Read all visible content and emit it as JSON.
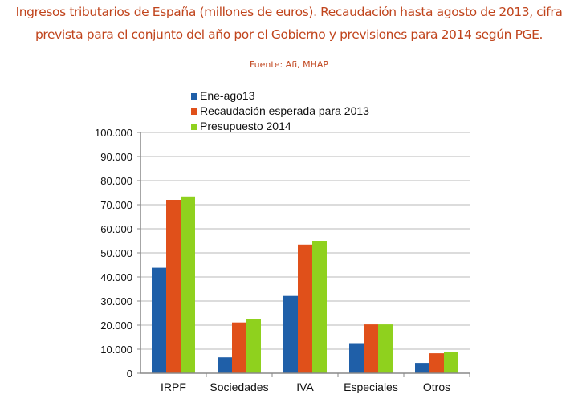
{
  "title_line1": "Ingresos tributarios de España (millones de euros). Recaudación hasta agosto de 2013, cifra",
  "title_line2": "prevista para el conjunto del año por el Gobierno y previsiones para 2014 según PGE.",
  "source": "Fuente: Afi, MHAP",
  "chart_data": {
    "type": "bar",
    "title": "Ingresos tributarios de España (millones de euros)",
    "categories": [
      "IRPF",
      "Sociedades",
      "IVA",
      "Especiales",
      "Otros"
    ],
    "series": [
      {
        "name": "Ene-ago13",
        "color": "#1f5fa8",
        "values": [
          43800,
          6600,
          32100,
          12500,
          4300
        ]
      },
      {
        "name": "Recaudación esperada para 2013",
        "color": "#e0501a",
        "values": [
          72000,
          21100,
          53400,
          20300,
          8300
        ]
      },
      {
        "name": "Presupuesto 2014",
        "color": "#8fd11e",
        "values": [
          73400,
          22400,
          55000,
          20300,
          8800
        ]
      }
    ],
    "ylim": [
      0,
      100000
    ],
    "yticks": [
      0,
      10000,
      20000,
      30000,
      40000,
      50000,
      60000,
      70000,
      80000,
      90000,
      100000
    ],
    "ytick_labels": [
      "0",
      "10.000",
      "20.000",
      "30.000",
      "40.000",
      "50.000",
      "60.000",
      "70.000",
      "80.000",
      "90.000",
      "100.000"
    ],
    "grid": true,
    "legend": "top-left",
    "xlabel": "",
    "ylabel": ""
  }
}
